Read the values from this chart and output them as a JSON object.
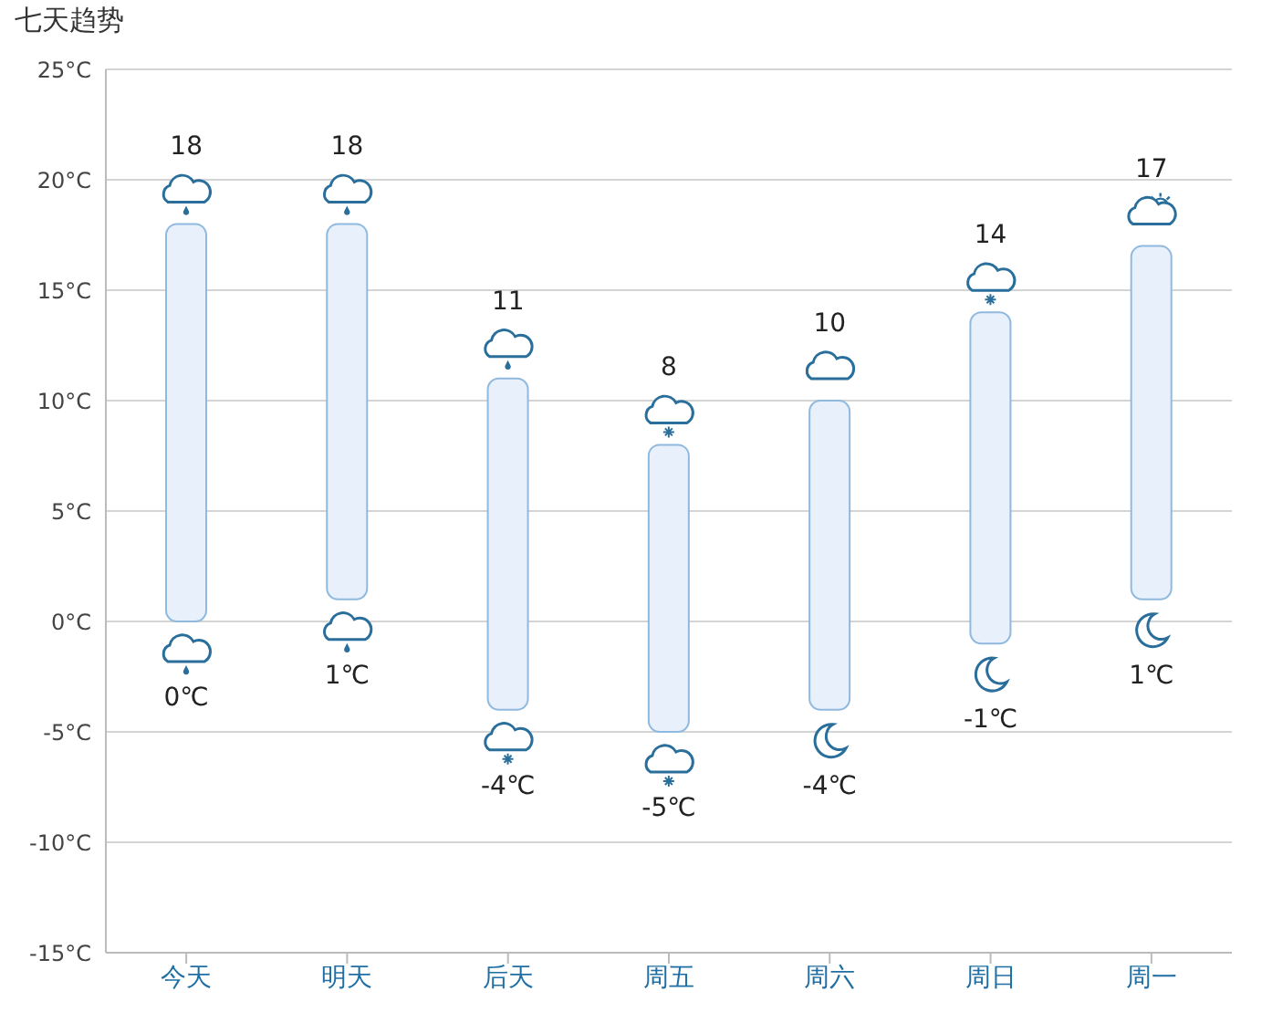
{
  "chart_data": {
    "type": "bar",
    "title": "七天趋势",
    "categories": [
      "今天",
      "明天",
      "后天",
      "周五",
      "周六",
      "周日",
      "周一"
    ],
    "base": [
      0,
      1,
      -4,
      -5,
      -4,
      -1,
      1
    ],
    "values": [
      18,
      17,
      15,
      13,
      14,
      15,
      16
    ],
    "color": "#e8f1fb",
    "ylim": [
      -15,
      25
    ],
    "yticks": [
      {
        "value": -15,
        "label": "-15°C"
      },
      {
        "value": -10,
        "label": "-10°C"
      },
      {
        "value": -5,
        "label": "-5°C"
      },
      {
        "value": 0,
        "label": "0°C"
      },
      {
        "value": 5,
        "label": "5°C"
      },
      {
        "value": 10,
        "label": "10°C"
      },
      {
        "value": 15,
        "label": "15°C"
      },
      {
        "value": 20,
        "label": "20°C"
      },
      {
        "value": 25,
        "label": "25°C"
      }
    ],
    "grid": "y",
    "annotations": [
      {
        "text": "18",
        "x": "今天",
        "y": 18
      },
      {
        "text": "0℃",
        "x": "今天",
        "y": 0
      },
      {
        "text": "18",
        "x": "明天",
        "y": 18
      },
      {
        "text": "1℃",
        "x": "明天",
        "y": 1
      },
      {
        "text": "11",
        "x": "后天",
        "y": 11
      },
      {
        "text": "-4℃",
        "x": "后天",
        "y": -4
      },
      {
        "text": "8",
        "x": "周五",
        "y": 8
      },
      {
        "text": "-5℃",
        "x": "周五",
        "y": -5
      },
      {
        "text": "10",
        "x": "周六",
        "y": 10
      },
      {
        "text": "-4℃",
        "x": "周六",
        "y": -4
      },
      {
        "text": "14",
        "x": "周日",
        "y": 14
      },
      {
        "text": "-1℃",
        "x": "周日",
        "y": -1
      },
      {
        "text": "17",
        "x": "周一",
        "y": 17
      },
      {
        "text": "1℃",
        "x": "周一",
        "y": 1
      }
    ]
  }
}
